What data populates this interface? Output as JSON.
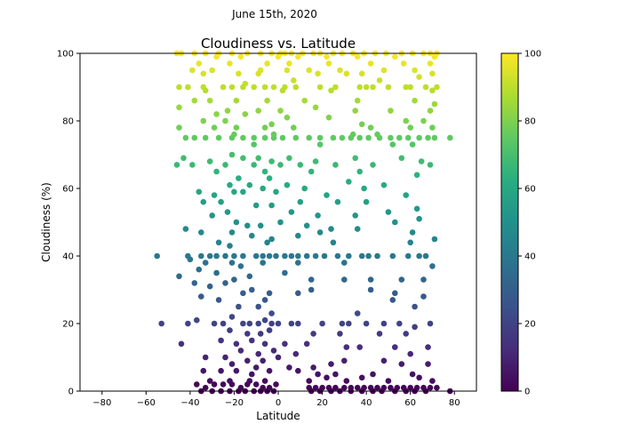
{
  "figure": {
    "suptitle": "June 15th, 2020"
  },
  "chart_data": {
    "type": "scatter",
    "title": "Cloudiness vs. Latitude",
    "xlabel": "Latitude",
    "ylabel": "Cloudiness (%)",
    "xlim": [
      -90,
      90
    ],
    "ylim": [
      0,
      100
    ],
    "xticks": [
      -80,
      -60,
      -40,
      -20,
      0,
      20,
      40,
      60,
      80
    ],
    "yticks": [
      0,
      20,
      40,
      60,
      80,
      100
    ],
    "colormap": "viridis",
    "colorbar": {
      "min": 0,
      "max": 100,
      "ticks": [
        0,
        20,
        40,
        60,
        80,
        100
      ]
    },
    "grid": false,
    "points": [
      [
        -46,
        100
      ],
      [
        -44,
        100
      ],
      [
        -38,
        100
      ],
      [
        -33,
        100
      ],
      [
        -27,
        100
      ],
      [
        -21,
        100
      ],
      [
        -14,
        100
      ],
      [
        -8,
        100
      ],
      [
        -3,
        100
      ],
      [
        1,
        100
      ],
      [
        3,
        100
      ],
      [
        6,
        100
      ],
      [
        11,
        100
      ],
      [
        16,
        100
      ],
      [
        19,
        100
      ],
      [
        25,
        100
      ],
      [
        29,
        100
      ],
      [
        34,
        100
      ],
      [
        39,
        100
      ],
      [
        44,
        100
      ],
      [
        49,
        100
      ],
      [
        56,
        100
      ],
      [
        61,
        100
      ],
      [
        66,
        100
      ],
      [
        69,
        100
      ],
      [
        72,
        100
      ],
      [
        -28,
        99
      ],
      [
        -17,
        99
      ],
      [
        0,
        99
      ],
      [
        9,
        99
      ],
      [
        22,
        99
      ],
      [
        36,
        99
      ],
      [
        53,
        99
      ],
      [
        71,
        99
      ],
      [
        -36,
        97
      ],
      [
        -22,
        97
      ],
      [
        -5,
        97
      ],
      [
        5,
        97
      ],
      [
        23,
        97
      ],
      [
        42,
        97
      ],
      [
        57,
        97
      ],
      [
        69,
        97
      ],
      [
        -39,
        95
      ],
      [
        -30,
        95
      ],
      [
        -18,
        94
      ],
      [
        -8,
        95
      ],
      [
        4,
        95
      ],
      [
        14,
        95
      ],
      [
        28,
        95
      ],
      [
        38,
        94
      ],
      [
        48,
        95
      ],
      [
        62,
        95
      ],
      [
        70,
        94
      ],
      [
        -34,
        94
      ],
      [
        -9,
        94
      ],
      [
        7,
        92
      ],
      [
        18,
        94
      ],
      [
        31,
        94
      ],
      [
        46,
        92
      ],
      [
        64,
        93
      ],
      [
        -45,
        90
      ],
      [
        -41,
        90
      ],
      [
        -34,
        90
      ],
      [
        -25,
        90
      ],
      [
        -21,
        90
      ],
      [
        -16,
        90
      ],
      [
        -11,
        90
      ],
      [
        -6,
        90
      ],
      [
        -2,
        90
      ],
      [
        3,
        90
      ],
      [
        8,
        90
      ],
      [
        19,
        90
      ],
      [
        26,
        90
      ],
      [
        37,
        90
      ],
      [
        43,
        90
      ],
      [
        50,
        90
      ],
      [
        60,
        90
      ],
      [
        67,
        90
      ],
      [
        72,
        90
      ],
      [
        -33,
        89
      ],
      [
        -15,
        91
      ],
      [
        2,
        89
      ],
      [
        24,
        89
      ],
      [
        40,
        90
      ],
      [
        58,
        90
      ],
      [
        70,
        89
      ],
      [
        -38,
        86
      ],
      [
        -31,
        86
      ],
      [
        -19,
        86
      ],
      [
        -5,
        86
      ],
      [
        12,
        86
      ],
      [
        36,
        86
      ],
      [
        62,
        86
      ],
      [
        71,
        85
      ],
      [
        -45,
        84
      ],
      [
        -28,
        82
      ],
      [
        -23,
        83
      ],
      [
        -15,
        82
      ],
      [
        -9,
        83
      ],
      [
        1,
        83
      ],
      [
        17,
        84
      ],
      [
        35,
        83
      ],
      [
        51,
        83
      ],
      [
        69,
        83
      ],
      [
        -34,
        80
      ],
      [
        -24,
        80
      ],
      [
        -3,
        79
      ],
      [
        4,
        81
      ],
      [
        23,
        81
      ],
      [
        38,
        79
      ],
      [
        58,
        80
      ],
      [
        66,
        80
      ],
      [
        -45,
        78
      ],
      [
        -29,
        78
      ],
      [
        -19,
        78
      ],
      [
        -6,
        78
      ],
      [
        7,
        78
      ],
      [
        42,
        78
      ],
      [
        60,
        78
      ],
      [
        70,
        78
      ],
      [
        -42,
        75
      ],
      [
        -38,
        75
      ],
      [
        -33,
        75
      ],
      [
        -27,
        75
      ],
      [
        -21,
        75
      ],
      [
        -16,
        75
      ],
      [
        -11,
        75
      ],
      [
        -6,
        75
      ],
      [
        -2,
        75
      ],
      [
        2,
        75
      ],
      [
        8,
        75
      ],
      [
        14,
        75
      ],
      [
        19,
        75
      ],
      [
        25,
        75
      ],
      [
        29,
        75
      ],
      [
        33,
        75
      ],
      [
        37,
        75
      ],
      [
        41,
        75
      ],
      [
        46,
        75
      ],
      [
        51,
        75
      ],
      [
        55,
        75
      ],
      [
        59,
        75
      ],
      [
        64,
        75
      ],
      [
        68,
        75
      ],
      [
        71,
        75
      ],
      [
        78,
        75
      ],
      [
        -20,
        76
      ],
      [
        -2,
        76
      ],
      [
        34,
        76
      ],
      [
        45,
        76
      ],
      [
        61,
        73
      ],
      [
        -11,
        73
      ],
      [
        19,
        73
      ],
      [
        52,
        73
      ],
      [
        -43,
        69
      ],
      [
        -31,
        68
      ],
      [
        -21,
        70
      ],
      [
        -16,
        69
      ],
      [
        -9,
        69
      ],
      [
        -3,
        68
      ],
      [
        5,
        69
      ],
      [
        17,
        68
      ],
      [
        35,
        69
      ],
      [
        56,
        69
      ],
      [
        65,
        68
      ],
      [
        -46,
        67
      ],
      [
        -39,
        67
      ],
      [
        -24,
        67
      ],
      [
        -11,
        67
      ],
      [
        1,
        67
      ],
      [
        10,
        67
      ],
      [
        26,
        67
      ],
      [
        43,
        67
      ],
      [
        69,
        67
      ],
      [
        -28,
        65
      ],
      [
        -6,
        65
      ],
      [
        15,
        65
      ],
      [
        37,
        65
      ],
      [
        63,
        64
      ],
      [
        -18,
        63
      ],
      [
        -4,
        63
      ],
      [
        32,
        62
      ],
      [
        -22,
        61
      ],
      [
        -13,
        61
      ],
      [
        -7,
        60
      ],
      [
        4,
        61
      ],
      [
        12,
        60
      ],
      [
        39,
        60
      ],
      [
        48,
        61
      ],
      [
        -36,
        59
      ],
      [
        -29,
        58
      ],
      [
        -20,
        59
      ],
      [
        -16,
        59
      ],
      [
        -1,
        59
      ],
      [
        22,
        58
      ],
      [
        58,
        58
      ],
      [
        -34,
        56
      ],
      [
        -26,
        56
      ],
      [
        -10,
        55
      ],
      [
        -3,
        55
      ],
      [
        10,
        56
      ],
      [
        27,
        56
      ],
      [
        40,
        56
      ],
      [
        50,
        53
      ],
      [
        63,
        54
      ],
      [
        -23,
        53
      ],
      [
        -30,
        52
      ],
      [
        6,
        53
      ],
      [
        18,
        52
      ],
      [
        35,
        52
      ],
      [
        64,
        51
      ],
      [
        -19,
        50
      ],
      [
        -14,
        49
      ],
      [
        -8,
        49
      ],
      [
        1,
        50
      ],
      [
        13,
        49
      ],
      [
        24,
        48
      ],
      [
        36,
        48
      ],
      [
        53,
        50
      ],
      [
        61,
        47
      ],
      [
        -42,
        48
      ],
      [
        -35,
        47
      ],
      [
        -21,
        47
      ],
      [
        -12,
        46
      ],
      [
        -3,
        45
      ],
      [
        9,
        46
      ],
      [
        19,
        47
      ],
      [
        71,
        45
      ],
      [
        -27,
        44
      ],
      [
        -5,
        44
      ],
      [
        25,
        44
      ],
      [
        60,
        44
      ],
      [
        -22,
        43
      ],
      [
        -55,
        40
      ],
      [
        -41,
        40
      ],
      [
        -35,
        40
      ],
      [
        -31,
        40
      ],
      [
        -28,
        40
      ],
      [
        -24,
        40
      ],
      [
        -20,
        40
      ],
      [
        -16,
        40
      ],
      [
        -10,
        40
      ],
      [
        -7,
        40
      ],
      [
        -4,
        40
      ],
      [
        -1,
        40
      ],
      [
        3,
        40
      ],
      [
        6,
        40
      ],
      [
        9,
        40
      ],
      [
        13,
        40
      ],
      [
        17,
        40
      ],
      [
        21,
        40
      ],
      [
        27,
        40
      ],
      [
        32,
        40
      ],
      [
        38,
        40
      ],
      [
        41,
        40
      ],
      [
        45,
        40
      ],
      [
        52,
        40
      ],
      [
        59,
        40
      ],
      [
        64,
        40
      ],
      [
        67,
        40
      ],
      [
        -40,
        39
      ],
      [
        -33,
        38
      ],
      [
        -21,
        38
      ],
      [
        -17,
        37
      ],
      [
        -7,
        38
      ],
      [
        9,
        38
      ],
      [
        30,
        38
      ],
      [
        70,
        37
      ],
      [
        -45,
        34
      ],
      [
        -36,
        36
      ],
      [
        -28,
        35
      ],
      [
        -20,
        33
      ],
      [
        -13,
        34
      ],
      [
        3,
        35
      ],
      [
        15,
        33
      ],
      [
        30,
        33
      ],
      [
        42,
        33
      ],
      [
        56,
        33
      ],
      [
        66,
        33
      ],
      [
        -38,
        32
      ],
      [
        -31,
        31
      ],
      [
        -24,
        32
      ],
      [
        -12,
        30
      ],
      [
        -4,
        29
      ],
      [
        15,
        30
      ],
      [
        42,
        30
      ],
      [
        -35,
        28
      ],
      [
        -16,
        29
      ],
      [
        -6,
        27
      ],
      [
        9,
        29
      ],
      [
        53,
        29
      ],
      [
        52,
        27
      ],
      [
        66,
        28
      ],
      [
        -27,
        27
      ],
      [
        -9,
        25
      ],
      [
        -18,
        25
      ],
      [
        -3,
        23
      ],
      [
        36,
        23
      ],
      [
        62,
        25
      ],
      [
        -53,
        20
      ],
      [
        -41,
        20
      ],
      [
        -37,
        21
      ],
      [
        -29,
        20
      ],
      [
        -25,
        20
      ],
      [
        -21,
        22
      ],
      [
        -16,
        20
      ],
      [
        -13,
        20
      ],
      [
        -9,
        20
      ],
      [
        -6,
        21
      ],
      [
        -3,
        20
      ],
      [
        0,
        20
      ],
      [
        6,
        20
      ],
      [
        9,
        20
      ],
      [
        20,
        20
      ],
      [
        29,
        20
      ],
      [
        32,
        20
      ],
      [
        40,
        20
      ],
      [
        48,
        20
      ],
      [
        55,
        20
      ],
      [
        62,
        19
      ],
      [
        69,
        20
      ],
      [
        -22,
        18
      ],
      [
        -14,
        17
      ],
      [
        -8,
        17
      ],
      [
        -4,
        18
      ],
      [
        16,
        17
      ],
      [
        28,
        17
      ],
      [
        46,
        17
      ],
      [
        58,
        17
      ],
      [
        -26,
        15
      ],
      [
        -19,
        14
      ],
      [
        -12,
        15
      ],
      [
        -6,
        14
      ],
      [
        3,
        14
      ],
      [
        13,
        14
      ],
      [
        31,
        13
      ],
      [
        53,
        13
      ],
      [
        -44,
        14
      ],
      [
        -17,
        12
      ],
      [
        -9,
        11
      ],
      [
        -2,
        12
      ],
      [
        8,
        11
      ],
      [
        37,
        13
      ],
      [
        68,
        13
      ],
      [
        -33,
        10
      ],
      [
        -24,
        10
      ],
      [
        -14,
        9
      ],
      [
        -7,
        9
      ],
      [
        0,
        10
      ],
      [
        24,
        8
      ],
      [
        30,
        9
      ],
      [
        48,
        9
      ],
      [
        60,
        11
      ],
      [
        -21,
        8
      ],
      [
        -10,
        7
      ],
      [
        5,
        7
      ],
      [
        16,
        7
      ],
      [
        56,
        8
      ],
      [
        68,
        8
      ],
      [
        -34,
        6
      ],
      [
        -26,
        6
      ],
      [
        -19,
        6
      ],
      [
        -12,
        5
      ],
      [
        -4,
        6
      ],
      [
        9,
        6
      ],
      [
        18,
        5
      ],
      [
        26,
        5
      ],
      [
        43,
        5
      ],
      [
        61,
        5
      ],
      [
        -31,
        3
      ],
      [
        -22,
        3
      ],
      [
        -13,
        3
      ],
      [
        -6,
        3
      ],
      [
        14,
        3
      ],
      [
        22,
        4
      ],
      [
        31,
        3
      ],
      [
        38,
        4
      ],
      [
        50,
        3
      ],
      [
        64,
        4
      ],
      [
        70,
        3
      ],
      [
        -37,
        2
      ],
      [
        -33,
        1
      ],
      [
        -29,
        2
      ],
      [
        -25,
        2
      ],
      [
        -21,
        2
      ],
      [
        -17,
        1
      ],
      [
        -14,
        2
      ],
      [
        -10,
        2
      ],
      [
        -7,
        1
      ],
      [
        -4,
        1
      ],
      [
        -1,
        2
      ],
      [
        14,
        1
      ],
      [
        17,
        1
      ],
      [
        20,
        1
      ],
      [
        23,
        1
      ],
      [
        26,
        1
      ],
      [
        30,
        1
      ],
      [
        33,
        1
      ],
      [
        36,
        1
      ],
      [
        39,
        1
      ],
      [
        42,
        1
      ],
      [
        45,
        1
      ],
      [
        48,
        1
      ],
      [
        51,
        1
      ],
      [
        54,
        1
      ],
      [
        57,
        1
      ],
      [
        60,
        1
      ],
      [
        63,
        1
      ],
      [
        66,
        1
      ],
      [
        69,
        1
      ],
      [
        72,
        1
      ],
      [
        78,
        0
      ],
      [
        -35,
        0
      ],
      [
        -30,
        0
      ],
      [
        -26,
        0
      ],
      [
        -22,
        0
      ],
      [
        -18,
        0
      ],
      [
        -15,
        0
      ],
      [
        -11,
        0
      ],
      [
        -8,
        0
      ],
      [
        -5,
        0
      ],
      [
        -2,
        0
      ],
      [
        15,
        0
      ],
      [
        19,
        0
      ],
      [
        24,
        0
      ],
      [
        28,
        0
      ],
      [
        33,
        0
      ],
      [
        38,
        0
      ],
      [
        43,
        0
      ],
      [
        47,
        0
      ],
      [
        53,
        0
      ],
      [
        58,
        0
      ],
      [
        62,
        0
      ],
      [
        67,
        0
      ]
    ]
  }
}
